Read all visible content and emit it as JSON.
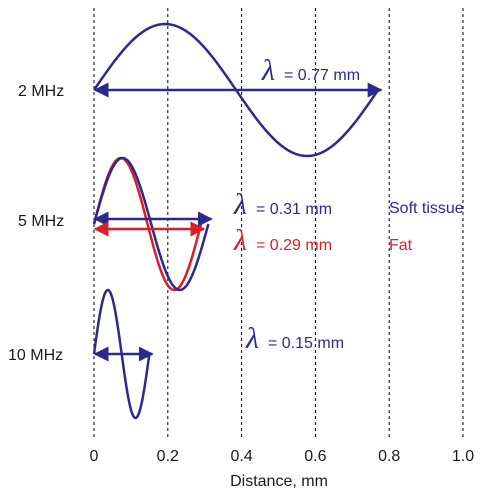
{
  "colors": {
    "soft_tissue": "#2b2a8c",
    "fat": "#d81f26",
    "grid": "#000000",
    "text": "#1a1a1a"
  },
  "axis": {
    "xlabel": "Distance, mm",
    "xlim": [
      0,
      1.0
    ],
    "ticks": [
      {
        "value": 0,
        "label": "0"
      },
      {
        "value": 0.2,
        "label": "0.2"
      },
      {
        "value": 0.4,
        "label": "0.4"
      },
      {
        "value": 0.6,
        "label": "0.6"
      },
      {
        "value": 0.8,
        "label": "0.8"
      },
      {
        "value": 1.0,
        "label": "1.0"
      }
    ]
  },
  "rows": [
    {
      "frequency_label": "2 MHz",
      "waves": [
        {
          "material": "soft tissue",
          "wavelength_mm": 0.77,
          "color": "#2b2a8c",
          "lambda_symbol": "λ",
          "lambda_value": "= 0.77 mm",
          "material_label": ""
        }
      ]
    },
    {
      "frequency_label": "5 MHz",
      "waves": [
        {
          "material": "soft tissue",
          "wavelength_mm": 0.31,
          "color": "#2b2a8c",
          "lambda_symbol": "λ",
          "lambda_value": "= 0.31 mm",
          "material_label": "Soft tissue"
        },
        {
          "material": "fat",
          "wavelength_mm": 0.29,
          "color": "#d81f26",
          "lambda_symbol": "λ",
          "lambda_value": "= 0.29 mm",
          "material_label": "Fat"
        }
      ]
    },
    {
      "frequency_label": "10 MHz",
      "waves": [
        {
          "material": "soft tissue",
          "wavelength_mm": 0.15,
          "color": "#2b2a8c",
          "lambda_symbol": "λ",
          "lambda_value": "= 0.15 mm",
          "material_label": ""
        }
      ]
    }
  ]
}
